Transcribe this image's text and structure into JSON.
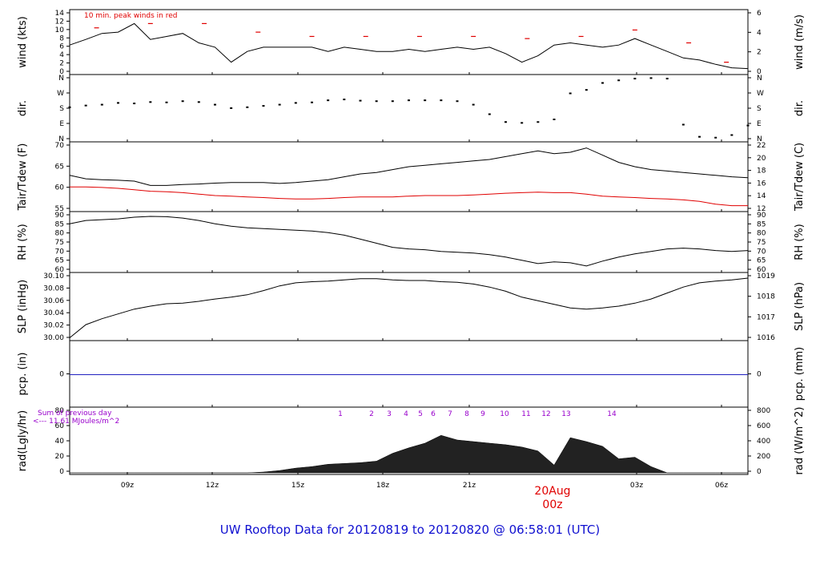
{
  "chart_data": {
    "type": "line",
    "title": "UW Rooftop Data for 20120819  to  20120820 @ 06:58:01  (UTC)",
    "x_ticks": [
      "09z",
      "12z",
      "15z",
      "18z",
      "21z",
      "03z",
      "06z"
    ],
    "day_marker": {
      "date": "20Aug",
      "hour": "00z"
    },
    "colors": {
      "title": "#1010d0",
      "peak": "#e00000",
      "dewpoint": "#e00000",
      "pcp": "#2020c0",
      "annotation": "#9900cc",
      "day_marker": "#e00000"
    },
    "panels": [
      {
        "id": "wind",
        "left_label": "wind (kts)",
        "right_label": "wind (m/s)",
        "left_ticks": [
          "0",
          "2",
          "4",
          "6",
          "8",
          "10",
          "12",
          "14"
        ],
        "right_ticks": [
          "0",
          "2",
          "4",
          "6"
        ],
        "ylim": [
          0,
          14
        ],
        "annotation": "10 min. peak winds in red",
        "series": [
          {
            "style": "line",
            "color": "#000000",
            "x": [
              0,
              0.03,
              0.06,
              0.09,
              0.12,
              0.15,
              0.18,
              0.21,
              0.24,
              0.27,
              0.3,
              0.33,
              0.36,
              0.39,
              0.42,
              0.45,
              0.48,
              0.51,
              0.54,
              0.57,
              0.6,
              0.63,
              0.66,
              0.69,
              0.72,
              0.75,
              0.78,
              0.81,
              0.84,
              0.87,
              0.9,
              0.93,
              0.96,
              0.99,
              1.02,
              1.05,
              1.08,
              1.11,
              1.14,
              1.17,
              1.2,
              1.23,
              1.26
            ],
            "y": [
              6.5,
              7.8,
              9.2,
              9.5,
              11.5,
              7.8,
              8.5,
              9.2,
              7.0,
              6.0,
              2.5,
              5.0,
              6.0,
              6.0,
              6.0,
              6.0,
              5.0,
              6.0,
              5.5,
              5.0,
              5.0,
              5.5,
              5.0,
              5.5,
              6.0,
              5.5,
              6.0,
              4.5,
              2.5,
              4.0,
              6.5,
              7.0,
              6.5,
              6.0,
              6.5,
              8.0,
              6.5,
              5.0,
              3.5,
              3.0,
              2.0,
              1.2,
              1.0
            ]
          },
          {
            "style": "dash",
            "color": "#e00000",
            "x": [
              0.05,
              0.15,
              0.25,
              0.35,
              0.45,
              0.55,
              0.65,
              0.75,
              0.85,
              0.95,
              1.05,
              1.15,
              1.22
            ],
            "y": [
              10.5,
              11.5,
              11.5,
              9.5,
              8.5,
              8.5,
              8.5,
              8.5,
              8.0,
              8.5,
              10.0,
              7.0,
              2.5
            ]
          }
        ]
      },
      {
        "id": "dir",
        "left_label": "dir.",
        "right_label": "dir.",
        "left_ticks": [
          "N",
          "E",
          "S",
          "W",
          "N"
        ],
        "right_ticks": [
          "N",
          "E",
          "S",
          "W",
          "N"
        ],
        "ylim": [
          0,
          360
        ],
        "series": [
          {
            "style": "dots",
            "color": "#000000",
            "x": [
              0,
              0.03,
              0.06,
              0.09,
              0.12,
              0.15,
              0.18,
              0.21,
              0.24,
              0.27,
              0.3,
              0.33,
              0.36,
              0.39,
              0.42,
              0.45,
              0.48,
              0.51,
              0.54,
              0.57,
              0.6,
              0.63,
              0.66,
              0.69,
              0.72,
              0.75,
              0.78,
              0.81,
              0.84,
              0.87,
              0.9,
              0.93,
              0.96,
              0.99,
              1.02,
              1.05,
              1.08,
              1.11,
              1.14,
              1.17,
              1.2,
              1.23,
              1.26
            ],
            "y": [
              190,
              200,
              205,
              215,
              212,
              220,
              218,
              225,
              220,
              205,
              185,
              190,
              198,
              205,
              215,
              218,
              230,
              235,
              228,
              225,
              225,
              230,
              230,
              230,
              225,
              205,
              150,
              105,
              100,
              105,
              120,
              270,
              290,
              330,
              345,
              355,
              358,
              355,
              90,
              20,
              15,
              30,
              85
            ]
          }
        ]
      },
      {
        "id": "temp",
        "left_label": "Tair/Tdew (F)",
        "right_label": "Tair/Tdew (C)",
        "left_ticks": [
          "55",
          "60",
          "65",
          "70"
        ],
        "right_ticks": [
          "12",
          "14",
          "16",
          "18",
          "20",
          "22"
        ],
        "ylim": [
          52,
          74.5
        ],
        "series": [
          {
            "name": "Tair",
            "style": "line",
            "color": "#000000",
            "x": [
              0,
              0.03,
              0.06,
              0.09,
              0.12,
              0.15,
              0.18,
              0.21,
              0.24,
              0.27,
              0.3,
              0.33,
              0.36,
              0.39,
              0.42,
              0.45,
              0.48,
              0.51,
              0.54,
              0.57,
              0.6,
              0.63,
              0.66,
              0.69,
              0.72,
              0.75,
              0.78,
              0.81,
              0.84,
              0.87,
              0.9,
              0.93,
              0.96,
              0.99,
              1.02,
              1.05,
              1.08,
              1.11,
              1.14,
              1.17,
              1.2,
              1.23,
              1.26
            ],
            "y": [
              64.0,
              62.8,
              62.5,
              62.3,
              62.0,
              60.5,
              60.5,
              60.8,
              61.0,
              61.3,
              61.5,
              61.5,
              61.5,
              61.2,
              61.5,
              62.0,
              62.5,
              63.5,
              64.5,
              65.0,
              66.0,
              67.0,
              67.5,
              68.0,
              68.5,
              69.0,
              69.5,
              70.5,
              71.5,
              72.5,
              71.5,
              72.0,
              73.5,
              71.0,
              68.5,
              67.0,
              66.0,
              65.5,
              65.0,
              64.5,
              64.0,
              63.5,
              63.2
            ]
          },
          {
            "name": "Tdew",
            "style": "line",
            "color": "#e00000",
            "x": [
              0,
              0.03,
              0.06,
              0.09,
              0.12,
              0.15,
              0.18,
              0.21,
              0.24,
              0.27,
              0.3,
              0.33,
              0.36,
              0.39,
              0.42,
              0.45,
              0.48,
              0.51,
              0.54,
              0.57,
              0.6,
              0.63,
              0.66,
              0.69,
              0.72,
              0.75,
              0.78,
              0.81,
              0.84,
              0.87,
              0.9,
              0.93,
              0.96,
              0.99,
              1.02,
              1.05,
              1.08,
              1.11,
              1.14,
              1.17,
              1.2,
              1.23,
              1.26
            ],
            "y": [
              60.0,
              60.0,
              59.8,
              59.5,
              59.0,
              58.5,
              58.3,
              58.0,
              57.5,
              57.0,
              56.8,
              56.5,
              56.3,
              56.0,
              55.8,
              55.8,
              56.0,
              56.3,
              56.5,
              56.5,
              56.5,
              56.8,
              57.0,
              57.0,
              57.0,
              57.2,
              57.5,
              57.8,
              58.0,
              58.2,
              58.0,
              58.0,
              57.5,
              56.8,
              56.5,
              56.3,
              56.0,
              55.8,
              55.5,
              55.0,
              54.0,
              53.5,
              53.5
            ]
          }
        ]
      },
      {
        "id": "rh",
        "left_label": "RH (%)",
        "right_label": "RH (%)",
        "left_ticks": [
          "60",
          "65",
          "70",
          "75",
          "80",
          "85",
          "90"
        ],
        "right_ticks": [
          "60",
          "65",
          "70",
          "75",
          "80",
          "85",
          "90"
        ],
        "ylim": [
          58,
          92.5
        ],
        "series": [
          {
            "style": "line",
            "color": "#000000",
            "x": [
              0,
              0.03,
              0.06,
              0.09,
              0.12,
              0.15,
              0.18,
              0.21,
              0.24,
              0.27,
              0.3,
              0.33,
              0.36,
              0.39,
              0.42,
              0.45,
              0.48,
              0.51,
              0.54,
              0.57,
              0.6,
              0.63,
              0.66,
              0.69,
              0.72,
              0.75,
              0.78,
              0.81,
              0.84,
              0.87,
              0.9,
              0.93,
              0.96,
              0.99,
              1.02,
              1.05,
              1.08,
              1.11,
              1.14,
              1.17,
              1.2,
              1.23,
              1.26
            ],
            "y": [
              87.0,
              89.0,
              89.5,
              90.0,
              91.0,
              91.5,
              91.3,
              90.5,
              89.0,
              87.0,
              85.5,
              84.5,
              84.0,
              83.5,
              83.0,
              82.5,
              81.5,
              80.0,
              77.5,
              75.0,
              72.5,
              71.5,
              71.0,
              70.0,
              69.5,
              69.0,
              68.0,
              66.5,
              64.5,
              62.5,
              63.5,
              63.0,
              61.0,
              64.0,
              66.5,
              68.5,
              70.0,
              71.5,
              72.0,
              71.5,
              70.5,
              70.0,
              70.5
            ]
          }
        ]
      },
      {
        "id": "slp",
        "left_label": "SLP (inHg)",
        "right_label": "SLP (hPa)",
        "left_ticks": [
          "30.00",
          "30.02",
          "30.04",
          "30.06",
          "30.08",
          "30.10"
        ],
        "right_ticks": [
          "1016",
          "1017",
          "1018",
          "1019"
        ],
        "ylim": [
          29.998,
          30.104
        ],
        "series": [
          {
            "style": "line",
            "color": "#000000",
            "x": [
              0,
              0.03,
              0.06,
              0.09,
              0.12,
              0.15,
              0.18,
              0.21,
              0.24,
              0.27,
              0.3,
              0.33,
              0.36,
              0.39,
              0.42,
              0.45,
              0.48,
              0.51,
              0.54,
              0.57,
              0.6,
              0.63,
              0.66,
              0.69,
              0.72,
              0.75,
              0.78,
              0.81,
              0.84,
              0.87,
              0.9,
              0.93,
              0.96,
              0.99,
              1.02,
              1.05,
              1.08,
              1.11,
              1.14,
              1.17,
              1.2,
              1.23,
              1.26
            ],
            "y": [
              30.0,
              30.022,
              30.032,
              30.04,
              30.048,
              30.053,
              30.057,
              30.058,
              30.061,
              30.065,
              30.068,
              30.072,
              30.079,
              30.087,
              30.092,
              30.094,
              30.095,
              30.097,
              30.099,
              30.099,
              30.097,
              30.096,
              30.096,
              30.094,
              30.093,
              30.09,
              30.085,
              30.078,
              30.068,
              30.062,
              30.056,
              30.05,
              30.048,
              30.05,
              30.053,
              30.058,
              30.065,
              30.075,
              30.085,
              30.092,
              30.095,
              30.097,
              30.1
            ]
          }
        ]
      },
      {
        "id": "pcp",
        "left_label": "pcp. (in)",
        "right_label": "pcp. (mm)",
        "left_ticks": [
          "0"
        ],
        "right_ticks": [
          "0"
        ],
        "ylim": [
          -1,
          1
        ],
        "series": [
          {
            "style": "line",
            "color": "#2020c0",
            "x": [
              0,
              1.26
            ],
            "y": [
              0,
              0
            ]
          }
        ]
      },
      {
        "id": "rad",
        "left_label": "rad(Lgly/hr)",
        "right_label": "rad (W/m^2)",
        "left_ticks": [
          "0",
          "20",
          "40",
          "60",
          "80"
        ],
        "right_ticks": [
          "0",
          "200",
          "400",
          "600",
          "800"
        ],
        "ylim": [
          0,
          80
        ],
        "annotation_lines": [
          "Sum of previous day",
          "<--- 11.61 MJoules/m^2"
        ],
        "hour_labels": [
          "1",
          "2",
          "3",
          "4",
          "5",
          "6",
          "7",
          "8",
          "9",
          "10",
          "11",
          "12",
          "13",
          "14"
        ],
        "series": [
          {
            "style": "area",
            "color": "#000000",
            "x": [
              0,
              0.03,
              0.06,
              0.09,
              0.12,
              0.15,
              0.18,
              0.21,
              0.24,
              0.27,
              0.3,
              0.33,
              0.36,
              0.39,
              0.42,
              0.45,
              0.48,
              0.51,
              0.54,
              0.57,
              0.6,
              0.63,
              0.66,
              0.69,
              0.72,
              0.75,
              0.78,
              0.81,
              0.84,
              0.87,
              0.9,
              0.93,
              0.96,
              0.99,
              1.02,
              1.05,
              1.08,
              1.11,
              1.14,
              1.17,
              1.2,
              1.23,
              1.26
            ],
            "y": [
              0,
              0,
              0,
              0,
              0,
              0,
              0,
              0,
              0,
              0,
              0,
              0,
              1,
              3,
              6,
              8,
              11,
              12,
              13,
              15,
              25,
              32,
              38,
              48,
              42,
              40,
              38,
              36,
              33,
              28,
              10,
              45,
              40,
              34,
              18,
              20,
              8,
              0,
              0,
              0,
              0,
              0,
              0
            ]
          }
        ]
      }
    ]
  }
}
